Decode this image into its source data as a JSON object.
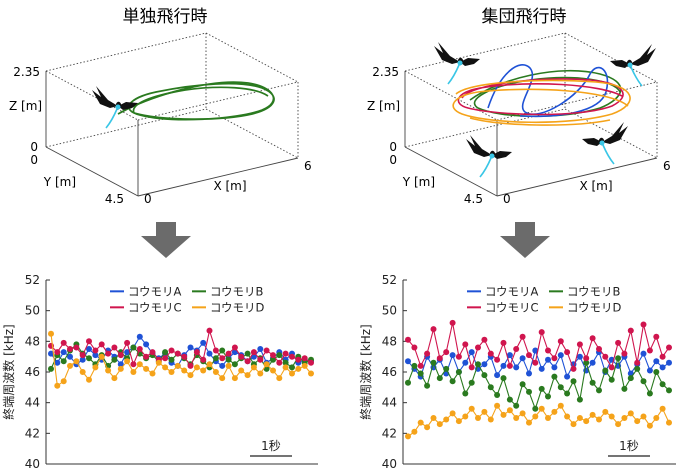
{
  "panels": [
    {
      "title": "単独飛行時",
      "axis_labels": {
        "x": "X [m]",
        "y": "Y [m]",
        "z": "Z [m]"
      },
      "tick_labels": {
        "z_top": "2.35",
        "z_bottom": "0",
        "y_near": "0",
        "y_far": "4.5",
        "x_left": "0",
        "x_right": "6"
      }
    },
    {
      "title": "集団飛行時",
      "axis_labels": {
        "x": "X [m]",
        "y": "Y [m]",
        "z": "Z [m]"
      },
      "tick_labels": {
        "z_top": "2.35",
        "z_bottom": "0",
        "y_near": "0",
        "y_far": "4.5",
        "x_left": "0",
        "x_right": "6"
      }
    }
  ],
  "colors": {
    "A": "#1f52d6",
    "B": "#2a7a1f",
    "C": "#d0154e",
    "D": "#f5a31a",
    "arrow": "#6b6b6b",
    "trajectory_single": "#2a7a1f",
    "bat": "#111111",
    "bat_tail": "#39c6e6"
  },
  "chart_data": [
    {
      "type": "line",
      "title": "",
      "xlabel": "",
      "ylabel": "終端周波数 [kHz]",
      "ylim": [
        40,
        52
      ],
      "yticks": [
        "40",
        "42",
        "44",
        "46",
        "48",
        "50",
        "52"
      ],
      "scalebar": "1秒",
      "legend": "top-right",
      "grid": false,
      "x": [
        0,
        1,
        2,
        3,
        4,
        5,
        6,
        7,
        8,
        9,
        10,
        11,
        12,
        13,
        14,
        15,
        16,
        17,
        18,
        19,
        20,
        21,
        22,
        23,
        24,
        25,
        26,
        27,
        28,
        29,
        30,
        31,
        32,
        33,
        34,
        35,
        36,
        37,
        38,
        39,
        40,
        41
      ],
      "series": [
        {
          "name": "コウモリA",
          "key": "A",
          "values": [
            47.2,
            46.6,
            47.3,
            47.0,
            46.5,
            46.8,
            47.5,
            47.1,
            46.8,
            47.4,
            47.0,
            46.5,
            47.3,
            47.6,
            48.3,
            47.8,
            47.2,
            46.9,
            47.2,
            46.6,
            46.4,
            47.1,
            47.6,
            47.4,
            47.9,
            47.2,
            46.7,
            46.4,
            46.9,
            47.3,
            47.1,
            46.7,
            47.0,
            47.5,
            46.6,
            46.9,
            47.3,
            46.8,
            47.2,
            46.6,
            46.8,
            46.7
          ]
        },
        {
          "name": "コウモリB",
          "key": "B",
          "values": [
            46.2,
            47.1,
            46.7,
            47.4,
            47.8,
            47.2,
            46.9,
            46.5,
            47.1,
            46.4,
            46.8,
            47.3,
            46.9,
            47.6,
            47.2,
            46.9,
            47.1,
            46.7,
            47.3,
            46.8,
            47.2,
            46.9,
            46.5,
            47.1,
            46.7,
            46.3,
            46.9,
            47.4,
            46.8,
            46.5,
            46.9,
            47.2,
            46.5,
            46.9,
            46.2,
            46.8,
            47.1,
            46.6,
            46.3,
            47.0,
            46.6,
            46.8
          ]
        },
        {
          "name": "コウモリC",
          "key": "C",
          "values": [
            47.7,
            47.3,
            47.9,
            47.5,
            47.6,
            47.1,
            48.0,
            47.4,
            47.8,
            47.2,
            47.6,
            47.1,
            47.9,
            46.5,
            47.5,
            47.0,
            47.3,
            46.8,
            46.9,
            47.4,
            47.2,
            47.0,
            46.4,
            47.3,
            46.8,
            48.7,
            47.4,
            46.9,
            47.2,
            47.6,
            47.0,
            46.7,
            47.3,
            46.8,
            47.4,
            47.1,
            46.6,
            47.2,
            47.0,
            46.8,
            46.9,
            46.6
          ]
        },
        {
          "name": "コウモリD",
          "key": "D",
          "values": [
            48.5,
            45.1,
            45.4,
            46.4,
            46.7,
            46.0,
            45.5,
            46.3,
            47.0,
            46.1,
            45.6,
            46.2,
            46.7,
            46.0,
            46.5,
            46.2,
            45.9,
            46.6,
            46.3,
            46.0,
            46.4,
            46.1,
            45.8,
            46.3,
            46.1,
            46.5,
            46.0,
            45.6,
            46.4,
            45.6,
            46.1,
            45.8,
            46.3,
            45.9,
            46.5,
            46.1,
            45.6,
            46.3,
            45.9,
            46.2,
            46.4,
            45.9
          ]
        }
      ]
    },
    {
      "type": "line",
      "title": "",
      "xlabel": "",
      "ylabel": "終端周波数 [kHz]",
      "ylim": [
        40,
        52
      ],
      "yticks": [
        "40",
        "42",
        "44",
        "46",
        "48",
        "50",
        "52"
      ],
      "scalebar": "1秒",
      "legend": "top-right",
      "grid": false,
      "x": [
        0,
        1,
        2,
        3,
        4,
        5,
        6,
        7,
        8,
        9,
        10,
        11,
        12,
        13,
        14,
        15,
        16,
        17,
        18,
        19,
        20,
        21,
        22,
        23,
        24,
        25,
        26,
        27,
        28,
        29,
        30,
        31,
        32,
        33,
        34,
        35,
        36,
        37,
        38,
        39,
        40,
        41
      ],
      "series": [
        {
          "name": "コウモリA",
          "key": "A",
          "values": [
            46.7,
            46.2,
            45.7,
            47.0,
            46.3,
            46.8,
            45.9,
            47.1,
            46.0,
            46.6,
            47.3,
            46.2,
            46.5,
            47.0,
            45.8,
            46.4,
            47.1,
            46.3,
            46.9,
            45.9,
            47.4,
            46.2,
            46.8,
            46.3,
            47.1,
            45.7,
            46.5,
            47.0,
            46.1,
            46.6,
            47.3,
            46.0,
            46.8,
            46.4,
            47.0,
            45.9,
            46.5,
            47.2,
            46.1,
            46.7,
            46.3,
            46.6
          ]
        },
        {
          "name": "コウモリB",
          "key": "B",
          "values": [
            45.3,
            46.4,
            45.9,
            45.1,
            46.6,
            45.6,
            46.2,
            45.4,
            46.0,
            44.6,
            45.3,
            46.5,
            45.8,
            45.0,
            44.5,
            45.6,
            44.2,
            43.8,
            45.2,
            44.7,
            43.6,
            44.9,
            44.4,
            45.7,
            45.0,
            44.6,
            45.4,
            44.2,
            46.6,
            45.3,
            44.8,
            46.1,
            45.5,
            46.9,
            44.9,
            45.6,
            46.2,
            45.4,
            44.6,
            46.0,
            45.2,
            44.8
          ]
        },
        {
          "name": "コウモリC",
          "key": "C",
          "values": [
            48.1,
            47.6,
            46.4,
            47.2,
            48.8,
            46.9,
            47.3,
            49.2,
            47.0,
            47.8,
            46.3,
            47.6,
            48.1,
            47.2,
            46.8,
            47.9,
            46.4,
            47.5,
            48.3,
            47.1,
            46.6,
            48.6,
            47.4,
            46.9,
            48.0,
            47.3,
            46.2,
            47.8,
            46.9,
            48.2,
            47.5,
            47.0,
            46.3,
            47.9,
            47.2,
            48.7,
            46.6,
            49.1,
            47.4,
            48.3,
            47.0,
            47.6
          ]
        },
        {
          "name": "コウモリD",
          "key": "D",
          "values": [
            41.8,
            42.1,
            42.7,
            42.4,
            43.0,
            42.6,
            42.9,
            43.3,
            42.8,
            43.1,
            43.6,
            43.0,
            43.4,
            42.9,
            43.8,
            43.2,
            43.5,
            43.0,
            43.3,
            42.7,
            43.1,
            43.6,
            43.0,
            43.4,
            43.8,
            43.1,
            42.6,
            43.0,
            42.8,
            43.2,
            42.9,
            43.4,
            43.1,
            42.6,
            43.0,
            43.3,
            42.8,
            43.1,
            42.5,
            43.0,
            43.6,
            42.7
          ]
        }
      ]
    }
  ]
}
